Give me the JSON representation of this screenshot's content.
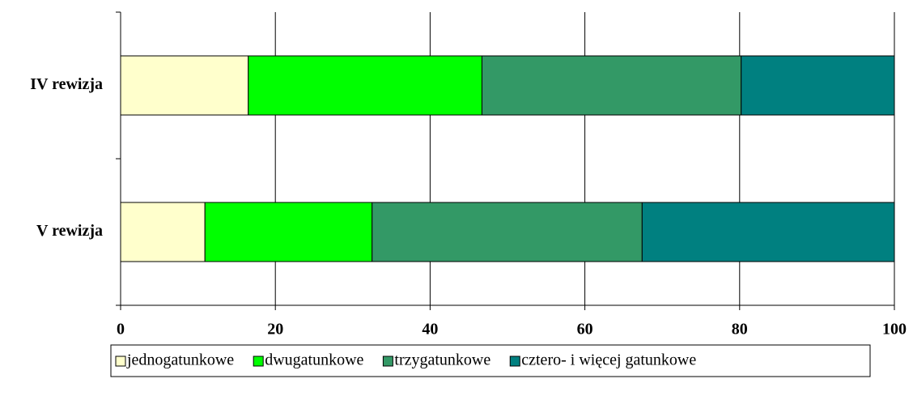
{
  "chart_data": {
    "type": "stacked_barh",
    "categories": [
      "IV rewizja",
      "V rewizja"
    ],
    "series": [
      {
        "name": "jednogatunkowe",
        "color": "#ffffcc",
        "values": [
          16.5,
          10.9
        ]
      },
      {
        "name": "dwugatunkowe",
        "color": "#00ff00",
        "values": [
          30.2,
          21.6
        ]
      },
      {
        "name": "trzygatunkowe",
        "color": "#339966",
        "values": [
          33.5,
          34.9
        ]
      },
      {
        "name": "cztero- i więcej gatunkowe",
        "color": "#008080",
        "values": [
          19.8,
          32.6
        ]
      }
    ],
    "xlim": [
      0,
      100
    ],
    "xticks": [
      0,
      20,
      40,
      60,
      80,
      100
    ],
    "grid": true,
    "legend": "bottom"
  }
}
